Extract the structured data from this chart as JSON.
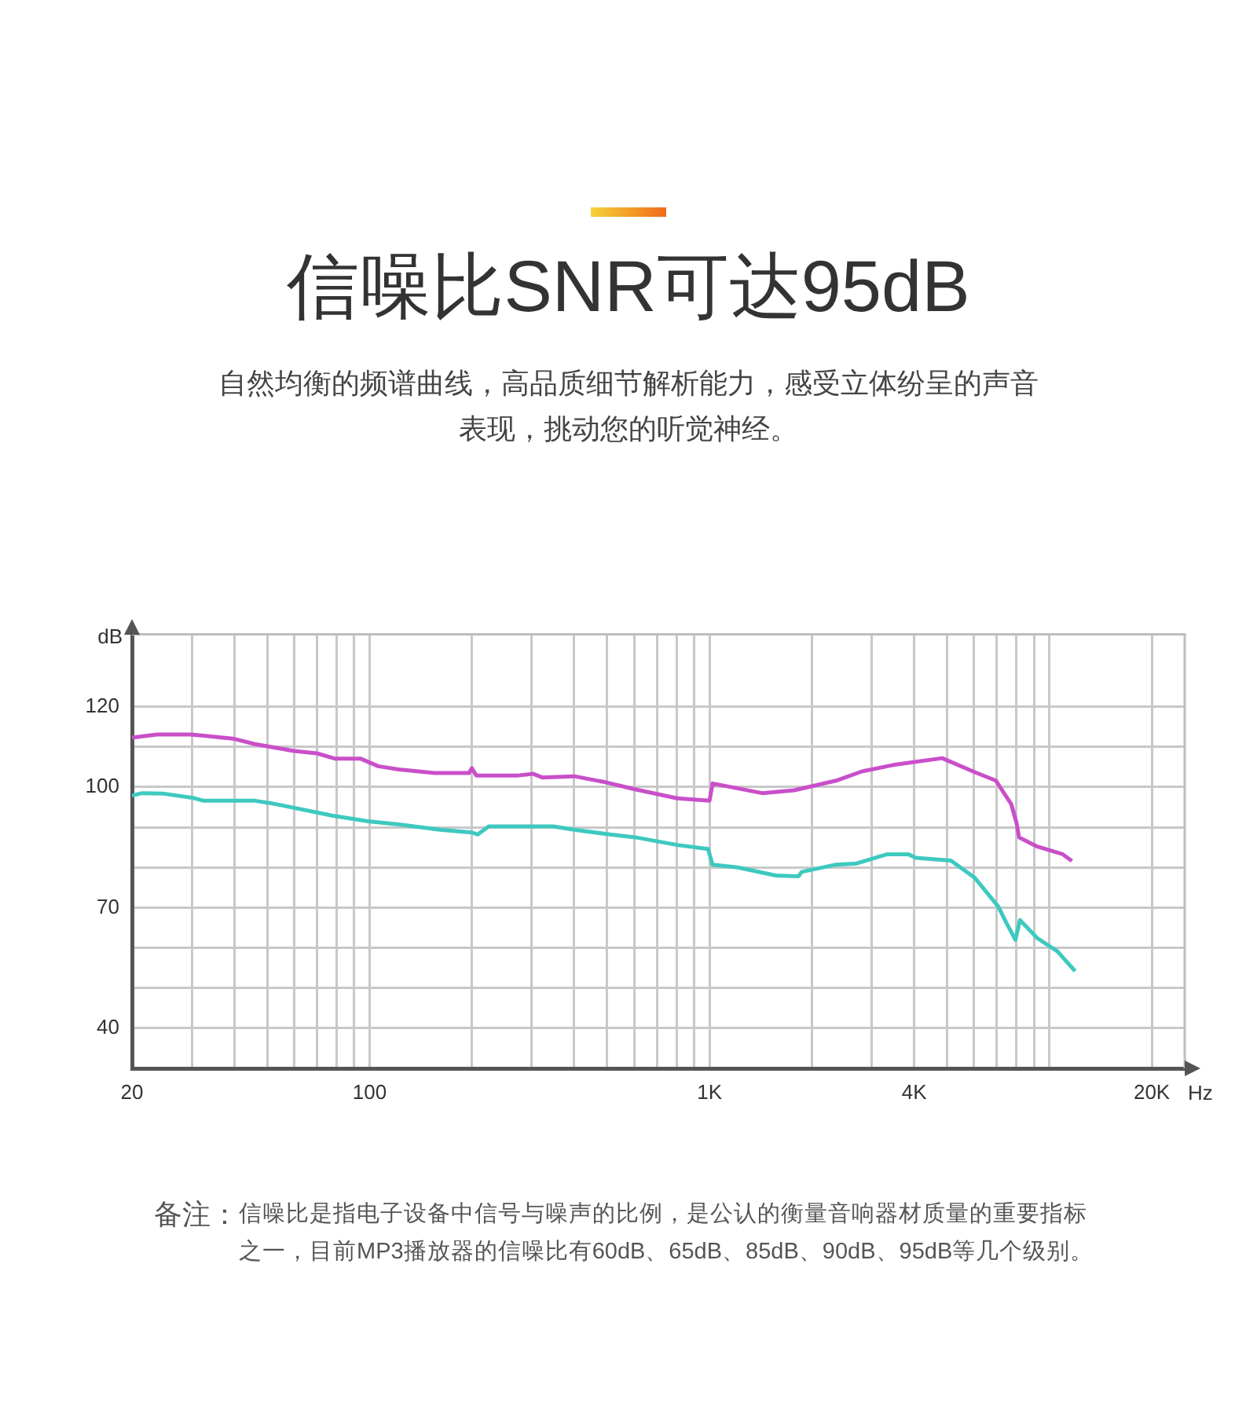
{
  "chart_data": {
    "type": "line",
    "title": "信噪比SNR可达95dB",
    "subtitle": "自然均衡的频谱曲线，高品质细节解析能力，感受立体纷呈的声音表现，挑动您的听觉神经。",
    "xlabel": "Hz",
    "ylabel": "dB",
    "annotations": [
      "备注：",
      "信噪比是指电子设备中信号与噪声的比例，是公认的衡量音响器材质量的重要指标之一，目前MP3播放器的信噪比有60dB、65dB、85dB、90dB、95dB等几个级别。"
    ],
    "log": "x",
    "grid": true,
    "legend": false,
    "marker": "none",
    "line_style": "solid",
    "xlim": [
      20,
      25000
    ],
    "ylim": [
      30,
      138
    ],
    "xticks": [
      20,
      {
        "value": 30,
        "label": null
      },
      {
        "value": 40,
        "label": null
      },
      {
        "value": 50,
        "label": null
      },
      {
        "value": 60,
        "label": null
      },
      {
        "value": 70,
        "label": null
      },
      {
        "value": 80,
        "label": null
      },
      {
        "value": 90,
        "label": null
      },
      100,
      {
        "value": 200,
        "label": null
      },
      {
        "value": 300,
        "label": null
      },
      {
        "value": 400,
        "label": null
      },
      {
        "value": 500,
        "label": null
      },
      {
        "value": 600,
        "label": null
      },
      {
        "value": 700,
        "label": null
      },
      {
        "value": 800,
        "label": null
      },
      {
        "value": 900,
        "label": null
      },
      {
        "value": 1000,
        "label": "1K"
      },
      {
        "value": 2000,
        "label": null
      },
      {
        "value": 3000,
        "label": null
      },
      {
        "value": 4000,
        "label": "4K"
      },
      {
        "value": 5000,
        "label": null
      },
      {
        "value": 6000,
        "label": null
      },
      {
        "value": 7000,
        "label": null
      },
      {
        "value": 8000,
        "label": null
      },
      {
        "value": 9000,
        "label": null
      },
      {
        "value": 10000,
        "label": null
      },
      {
        "value": 20000,
        "label": "20K"
      }
    ],
    "yticks": [
      40,
      {
        "value": 50,
        "label": null
      },
      {
        "value": 60,
        "label": null
      },
      70,
      {
        "value": 80,
        "label": null
      },
      {
        "value": 90,
        "label": null
      },
      100,
      {
        "value": 110,
        "label": null
      },
      120
    ],
    "series": [
      {
        "color": "#c94fc9",
        "x": [
          20,
          23.7,
          29.8,
          40,
          46,
          60,
          70,
          79,
          94,
          106,
          122,
          155,
          196,
          200,
          206,
          274,
          303,
          322,
          400,
          495,
          600,
          803,
          1000,
          1021,
          1429,
          1775,
          2355,
          2808,
          3470,
          4835,
          6035,
          6960,
          7725,
          8000,
          8140,
          9210,
          10940,
          11640
        ],
        "values": [
          112.3,
          113.1,
          113.1,
          112,
          110.7,
          109,
          108.4,
          107.1,
          107.1,
          105.2,
          104.4,
          103.5,
          103.5,
          104.7,
          102.9,
          102.9,
          103.3,
          102.4,
          102.7,
          101.2,
          99.5,
          97.2,
          96.6,
          100.9,
          98.5,
          99.2,
          101.6,
          103.9,
          105.5,
          107.2,
          103.7,
          101.6,
          95.7,
          91.1,
          87.5,
          85.2,
          83.3,
          81.6
        ]
      },
      {
        "color": "#3ec9c0",
        "x": [
          20,
          21.4,
          24.6,
          30.3,
          32.5,
          46,
          51.2,
          70,
          77.6,
          99,
          122,
          161,
          200,
          208,
          224,
          347,
          400,
          510,
          605,
          803,
          990,
          1021,
          1212,
          1566,
          1826,
          1868,
          2355,
          2707,
          3335,
          3840,
          4044,
          5130,
          6035,
          7080,
          7460,
          7940,
          8190,
          9210,
          10560,
          11900
        ],
        "values": [
          97.9,
          98.5,
          98.4,
          97.3,
          96.6,
          96.6,
          96,
          93.7,
          92.9,
          91.5,
          90.7,
          89.4,
          88.7,
          88.2,
          90.2,
          90.2,
          89.4,
          88.2,
          87.5,
          85.6,
          84.6,
          80.7,
          80,
          78,
          77.8,
          78.9,
          80.7,
          81,
          83.3,
          83.3,
          82.4,
          81.7,
          77.4,
          70.2,
          66.3,
          62,
          66.9,
          62.4,
          59.1,
          54.2
        ]
      }
    ]
  }
}
